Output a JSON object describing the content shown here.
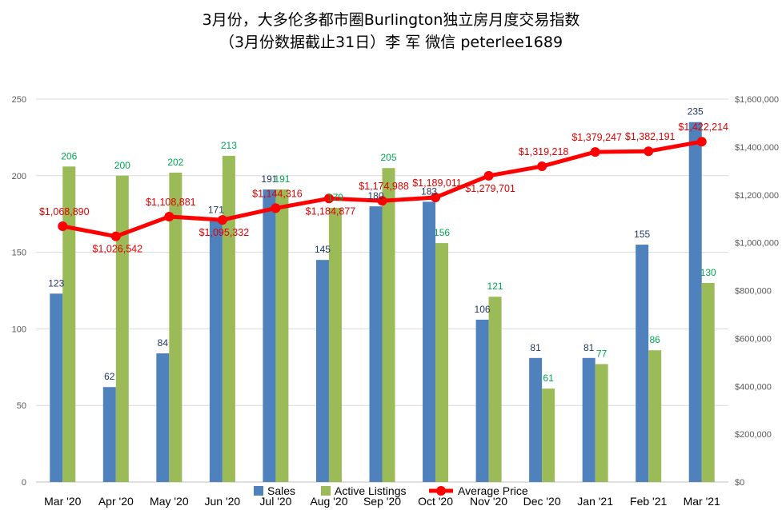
{
  "title_line1": "3月份，大多伦多都市圈Burlington独立房月度交易指数",
  "title_line2": "（3月份数据截止31日）李 军  微信  peterlee1689",
  "chart_data": {
    "type": "bar",
    "categories": [
      "Mar '20",
      "Apr '20",
      "May '20",
      "Jun '20",
      "Jul '20",
      "Aug '20",
      "Sep '20",
      "Oct '20",
      "Nov '20",
      "Dec '20",
      "Jan '21",
      "Feb '21",
      "Mar '21"
    ],
    "series": [
      {
        "name": "Sales",
        "type": "bar",
        "axis": "left",
        "color": "#4f81bd",
        "values": [
          123,
          62,
          84,
          171,
          191,
          145,
          180,
          183,
          106,
          81,
          81,
          155,
          235
        ]
      },
      {
        "name": "Active Listings",
        "type": "bar",
        "axis": "left",
        "color": "#9bbb59",
        "values": [
          206,
          200,
          202,
          213,
          191,
          179,
          205,
          156,
          121,
          61,
          77,
          86,
          130
        ]
      },
      {
        "name": "Average Price",
        "type": "line",
        "axis": "right",
        "color": "#ff0000",
        "values": [
          1068890,
          1026542,
          1108881,
          1095332,
          1144316,
          1184877,
          1174988,
          1189011,
          1279701,
          1319218,
          1379247,
          1382191,
          1422214
        ],
        "labels": [
          "$1,068,890",
          "$1,026,542",
          "$1,108,881",
          "$1,095,332",
          "$1,144,316",
          "$1,184,877",
          "$1,174,988",
          "$1,189,011",
          "$1,279,701",
          "$1,319,218",
          "$1,379,247",
          "$1,382,191",
          "$1,422,214"
        ]
      }
    ],
    "y_left": {
      "range": [
        0,
        250
      ],
      "ticks": [
        "0",
        "50",
        "100",
        "150",
        "200",
        "250"
      ]
    },
    "y_right": {
      "range": [
        0,
        1600000
      ],
      "ticks": [
        "$0",
        "$200,000",
        "$400,000",
        "$600,000",
        "$800,000",
        "$1,000,000",
        "$1,200,000",
        "$1,400,000",
        "$1,600,000"
      ]
    },
    "grid": true,
    "legend_position": "bottom"
  }
}
